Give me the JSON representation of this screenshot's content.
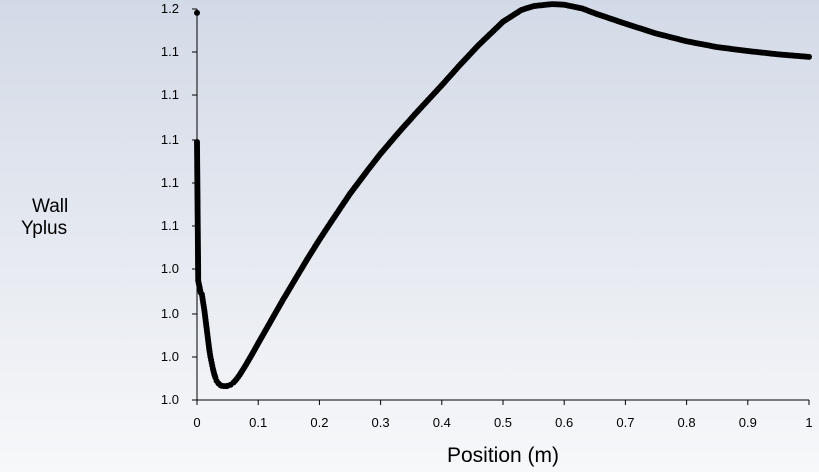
{
  "chart_data": {
    "type": "scatter",
    "title": "",
    "xlabel": "Position (m)",
    "ylabel_lines": [
      "Wall",
      "Yplus"
    ],
    "xlim": [
      0,
      1
    ],
    "ylim": [
      1.0,
      1.2
    ],
    "grid": false,
    "legend": "none",
    "marker_color": "#000000",
    "x_ticks": [
      {
        "value": 0,
        "label": "0"
      },
      {
        "value": 0.1,
        "label": "0.1"
      },
      {
        "value": 0.2,
        "label": "0.2"
      },
      {
        "value": 0.3,
        "label": "0.3"
      },
      {
        "value": 0.4,
        "label": "0.4"
      },
      {
        "value": 0.5,
        "label": "0.5"
      },
      {
        "value": 0.6,
        "label": "0.6"
      },
      {
        "value": 0.7,
        "label": "0.7"
      },
      {
        "value": 0.8,
        "label": "0.8"
      },
      {
        "value": 0.9,
        "label": "0.9"
      },
      {
        "value": 1,
        "label": "1"
      }
    ],
    "y_ticks": [
      {
        "value": 1.0,
        "label": "1.0"
      },
      {
        "value": 1.022,
        "label": "1.0"
      },
      {
        "value": 1.044,
        "label": "1.0"
      },
      {
        "value": 1.067,
        "label": "1.0"
      },
      {
        "value": 1.089,
        "label": "1.1"
      },
      {
        "value": 1.111,
        "label": "1.1"
      },
      {
        "value": 1.133,
        "label": "1.1"
      },
      {
        "value": 1.156,
        "label": "1.1"
      },
      {
        "value": 1.178,
        "label": "1.1"
      },
      {
        "value": 1.2,
        "label": "1.2"
      }
    ],
    "series": [
      {
        "x": [
          0,
          0,
          0.002,
          0.006,
          0.008,
          0.01,
          0.012,
          0.014,
          0.016,
          0.018,
          0.02,
          0.022,
          0.024,
          0.026,
          0.028,
          0.03,
          0.032,
          0.035,
          0.038,
          0.04,
          0.044,
          0.048,
          0.05,
          0.055,
          0.06,
          0.065,
          0.07,
          0.08,
          0.09,
          0.1,
          0.12,
          0.14,
          0.16,
          0.18,
          0.2,
          0.22,
          0.25,
          0.28,
          0.3,
          0.33,
          0.36,
          0.4,
          0.43,
          0.46,
          0.5,
          0.53,
          0.55,
          0.58,
          0.6,
          0.63,
          0.65,
          0.7,
          0.75,
          0.8,
          0.85,
          0.9,
          0.95,
          1.0
        ],
        "y": [
          1.198,
          1.132,
          1.061,
          1.055,
          1.054,
          1.05,
          1.046,
          1.041,
          1.036,
          1.031,
          1.026,
          1.022,
          1.019,
          1.016,
          1.0135,
          1.0115,
          1.0098,
          1.0085,
          1.0077,
          1.0073,
          1.0071,
          1.0071,
          1.0072,
          1.0078,
          1.009,
          1.0108,
          1.013,
          1.018,
          1.0234,
          1.029,
          1.04,
          1.051,
          1.0615,
          1.072,
          1.082,
          1.0915,
          1.1055,
          1.118,
          1.126,
          1.137,
          1.1475,
          1.161,
          1.1715,
          1.1815,
          1.1935,
          1.1995,
          1.2015,
          1.2025,
          1.2022,
          1.2002,
          1.1978,
          1.1925,
          1.1875,
          1.1835,
          1.1805,
          1.1785,
          1.1768,
          1.1755
        ]
      }
    ]
  }
}
